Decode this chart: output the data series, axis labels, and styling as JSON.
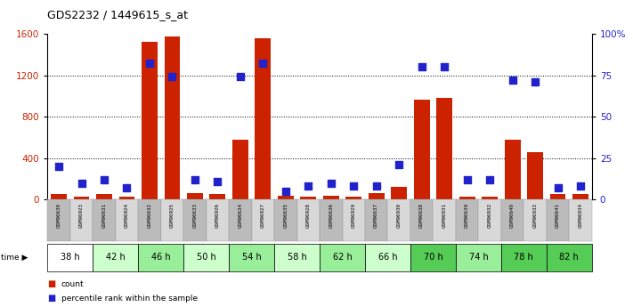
{
  "title": "GDS2232 / 1449615_s_at",
  "samples": [
    "GSM96630",
    "GSM96923",
    "GSM96631",
    "GSM96924",
    "GSM96632",
    "GSM96925",
    "GSM96633",
    "GSM96926",
    "GSM96634",
    "GSM96927",
    "GSM96635",
    "GSM96928",
    "GSM96636",
    "GSM96929",
    "GSM96637",
    "GSM96930",
    "GSM96638",
    "GSM96931",
    "GSM96639",
    "GSM96932",
    "GSM96640",
    "GSM96933",
    "GSM96641",
    "GSM96934"
  ],
  "time_groups": [
    {
      "label": "38 h",
      "start": 0,
      "end": 2,
      "color": "#ffffff"
    },
    {
      "label": "42 h",
      "start": 2,
      "end": 4,
      "color": "#ccffcc"
    },
    {
      "label": "46 h",
      "start": 4,
      "end": 6,
      "color": "#99ee99"
    },
    {
      "label": "50 h",
      "start": 6,
      "end": 8,
      "color": "#ccffcc"
    },
    {
      "label": "54 h",
      "start": 8,
      "end": 10,
      "color": "#99ee99"
    },
    {
      "label": "58 h",
      "start": 10,
      "end": 12,
      "color": "#ccffcc"
    },
    {
      "label": "62 h",
      "start": 12,
      "end": 14,
      "color": "#99ee99"
    },
    {
      "label": "66 h",
      "start": 14,
      "end": 16,
      "color": "#ccffcc"
    },
    {
      "label": "70 h",
      "start": 16,
      "end": 18,
      "color": "#55cc55"
    },
    {
      "label": "74 h",
      "start": 18,
      "end": 20,
      "color": "#99ee99"
    },
    {
      "label": "78 h",
      "start": 20,
      "end": 22,
      "color": "#55cc55"
    },
    {
      "label": "82 h",
      "start": 22,
      "end": 24,
      "color": "#55cc55"
    }
  ],
  "count_values": [
    55,
    30,
    55,
    30,
    1520,
    1570,
    60,
    50,
    580,
    1560,
    40,
    30,
    40,
    30,
    60,
    120,
    960,
    980,
    30,
    30,
    580,
    460,
    50,
    50
  ],
  "percentile_values": [
    20,
    10,
    12,
    7,
    82,
    74,
    12,
    11,
    74,
    82,
    5,
    8,
    10,
    8,
    8,
    21,
    80,
    80,
    12,
    12,
    72,
    71,
    7,
    8
  ],
  "bar_color": "#cc2200",
  "dot_color": "#2222cc",
  "ylim_left": [
    0,
    1600
  ],
  "ylim_right": [
    0,
    100
  ],
  "yticks_left": [
    0,
    400,
    800,
    1200,
    1600
  ],
  "yticks_right": [
    0,
    25,
    50,
    75,
    100
  ],
  "ytick_labels_right": [
    "0",
    "25",
    "50",
    "75",
    "100%"
  ],
  "label_count": "count",
  "label_percentile": "percentile rank within the sample",
  "sample_row_color_odd": "#bbbbbb",
  "sample_row_color_even": "#d8d8d8"
}
